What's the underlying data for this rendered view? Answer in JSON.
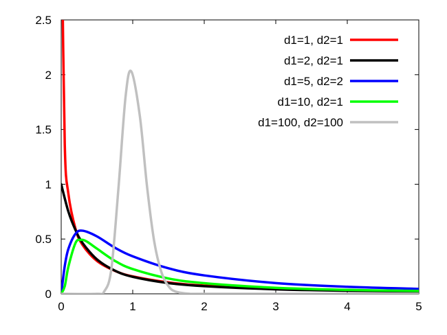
{
  "chart_data": {
    "type": "line",
    "title": "",
    "xlabel": "",
    "ylabel": "",
    "xlim": [
      0,
      5
    ],
    "ylim": [
      0,
      2.5
    ],
    "x_ticks": [
      0,
      1,
      2,
      3,
      4,
      5
    ],
    "x_tick_labels": [
      "0",
      "1",
      "2",
      "3",
      "4",
      "5"
    ],
    "y_ticks": [
      0,
      0.5,
      1,
      1.5,
      2,
      2.5
    ],
    "y_tick_labels": [
      "0",
      "0.5",
      "1",
      "1.5",
      "2",
      "2.5"
    ],
    "grid": false,
    "legend_position": "top-right",
    "series": [
      {
        "name": "d1=1, d2=1",
        "color": "#ff0000",
        "x": [
          0.01,
          0.05,
          0.1,
          0.2,
          0.3,
          0.5,
          0.75,
          1,
          1.5,
          2,
          3,
          4,
          5
        ],
        "y": [
          3.17,
          1.36,
          0.915,
          0.593,
          0.445,
          0.3,
          0.21,
          0.159,
          0.104,
          0.075,
          0.046,
          0.032,
          0.024
        ]
      },
      {
        "name": "d1=2, d2=1",
        "color": "#000000",
        "x": [
          0,
          0.1,
          0.2,
          0.3,
          0.5,
          0.75,
          1,
          1.5,
          2,
          3,
          4,
          5
        ],
        "y": [
          1.0,
          0.751,
          0.582,
          0.463,
          0.314,
          0.212,
          0.155,
          0.098,
          0.07,
          0.041,
          0.028,
          0.021
        ]
      },
      {
        "name": "d1=5, d2=2",
        "color": "#0000ff",
        "x": [
          0,
          0.05,
          0.1,
          0.2,
          0.3,
          0.5,
          0.75,
          1,
          1.5,
          2,
          3,
          4,
          5
        ],
        "y": [
          0,
          0.255,
          0.409,
          0.548,
          0.576,
          0.524,
          0.421,
          0.342,
          0.233,
          0.168,
          0.098,
          0.064,
          0.045
        ]
      },
      {
        "name": "d1=10, d2=1",
        "color": "#00ff00",
        "x": [
          0,
          0.05,
          0.1,
          0.2,
          0.27,
          0.35,
          0.5,
          0.75,
          1,
          1.5,
          2,
          3,
          4,
          5
        ],
        "y": [
          0,
          0.07,
          0.246,
          0.464,
          0.492,
          0.48,
          0.412,
          0.301,
          0.226,
          0.14,
          0.097,
          0.055,
          0.036,
          0.026
        ]
      },
      {
        "name": "d1=100, d2=100",
        "color": "#c0c0c0",
        "x": [
          0,
          0.5,
          0.6,
          0.7,
          0.8,
          0.9,
          0.98,
          1.1,
          1.2,
          1.3,
          1.4,
          1.5,
          1.6,
          1.8,
          2,
          5
        ],
        "y": [
          0,
          0.0,
          0.02,
          0.22,
          0.96,
          1.8,
          2.03,
          1.62,
          0.98,
          0.48,
          0.2,
          0.07,
          0.02,
          0.0,
          0.0,
          0.0
        ]
      }
    ]
  }
}
